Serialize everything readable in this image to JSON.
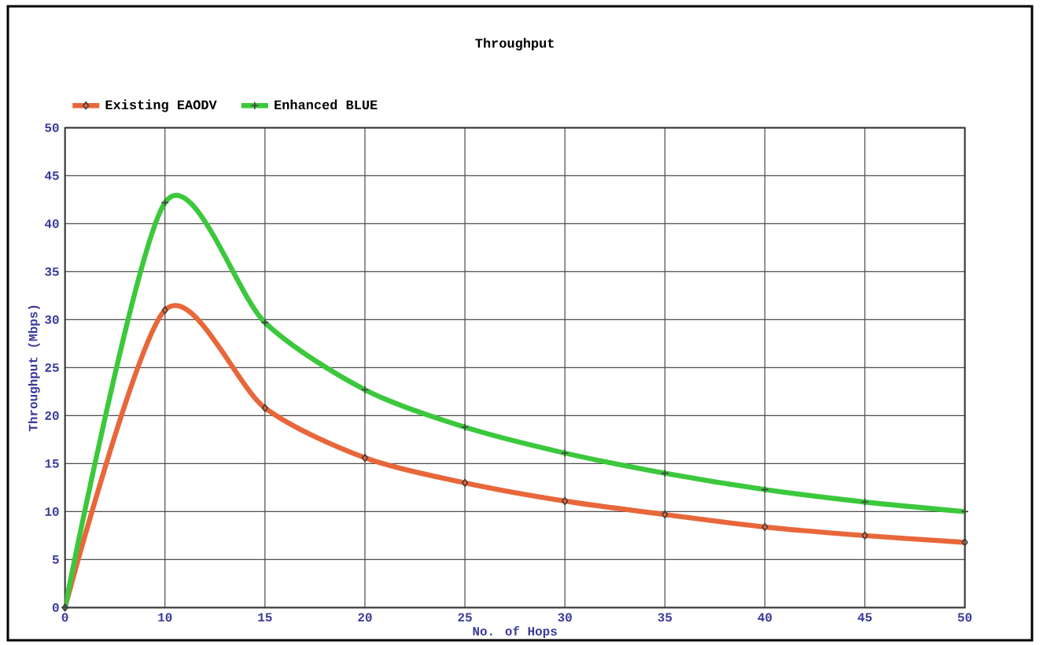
{
  "chart_data": {
    "type": "line",
    "title": "Throughput",
    "xlabel": "No. of Hops",
    "ylabel": "Throughput (Mbps)",
    "categories": [
      "0",
      "10",
      "15",
      "20",
      "25",
      "30",
      "35",
      "40",
      "45",
      "50"
    ],
    "series": [
      {
        "name": "Existing EAODV",
        "color": "#e8673a",
        "marker": "diamond",
        "values": [
          0,
          31,
          20.8,
          15.6,
          13,
          11.1,
          9.7,
          8.4,
          7.5,
          6.8
        ]
      },
      {
        "name": "Enhanced BLUE",
        "color": "#3cc83c",
        "marker": "cross",
        "values": [
          0,
          42.2,
          29.7,
          22.7,
          18.8,
          16.1,
          14,
          12.3,
          11,
          10
        ]
      }
    ],
    "ylim": [
      0,
      50
    ],
    "yticks": [
      0,
      5,
      10,
      15,
      20,
      25,
      30,
      35,
      40,
      45,
      50
    ],
    "grid": true,
    "legend": "top left"
  }
}
